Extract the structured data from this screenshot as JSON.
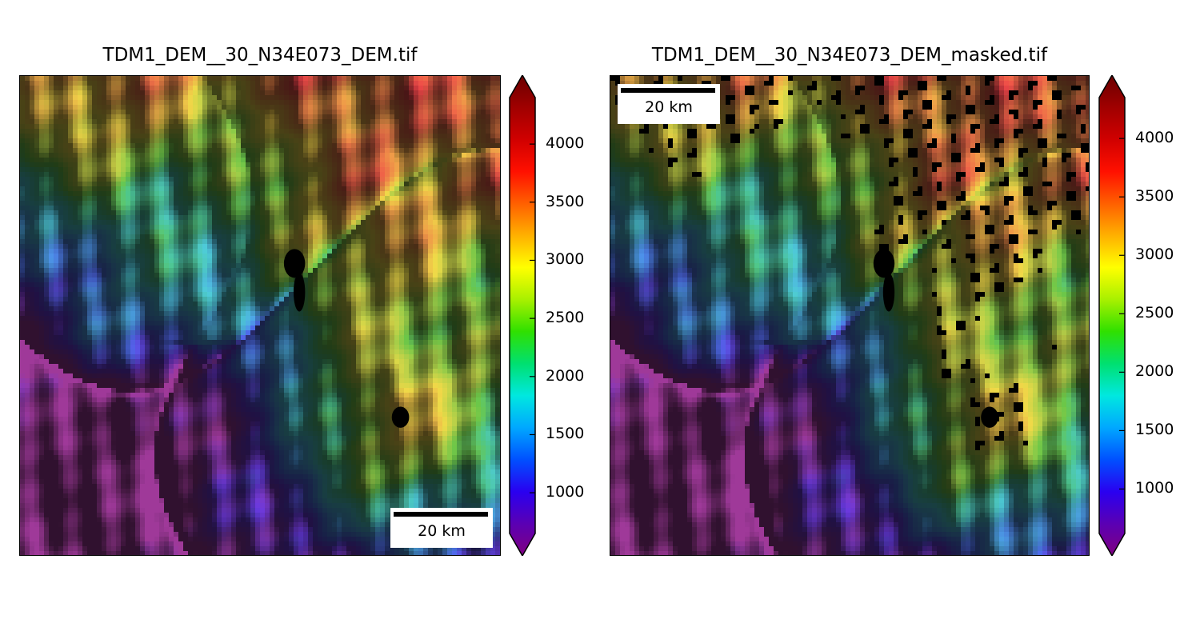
{
  "colors": {
    "ramp": [
      "#800080",
      "#5a00b4",
      "#2a00f0",
      "#0050ff",
      "#00a8ff",
      "#00e8e0",
      "#00e070",
      "#30e000",
      "#a8f000",
      "#ffff00",
      "#ffb000",
      "#ff6000",
      "#ff1000",
      "#d00000",
      "#a00000",
      "#6a0000"
    ]
  },
  "panels": [
    {
      "title": "TDM1_DEM__30_N34E073_DEM.tif",
      "colorbar": {
        "ticks": [
          "1000",
          "1500",
          "2000",
          "2500",
          "3000",
          "3500",
          "4000"
        ],
        "tick_values": [
          1000,
          1500,
          2000,
          2500,
          3000,
          3500,
          4000
        ],
        "min": 650,
        "max": 4400,
        "extend": "both"
      },
      "scalebar": {
        "label": "20 km",
        "position": "bottom-right"
      },
      "masked": false
    },
    {
      "title": "TDM1_DEM__30_N34E073_DEM_masked.tif",
      "colorbar": {
        "ticks": [
          "1000",
          "1500",
          "2000",
          "2500",
          "3000",
          "3500",
          "4000"
        ],
        "tick_values": [
          1000,
          1500,
          2000,
          2500,
          3000,
          3500,
          4000
        ],
        "min": 620,
        "max": 4350,
        "extend": "both"
      },
      "scalebar": {
        "label": "20 km",
        "position": "top-left"
      },
      "masked": true
    }
  ]
}
